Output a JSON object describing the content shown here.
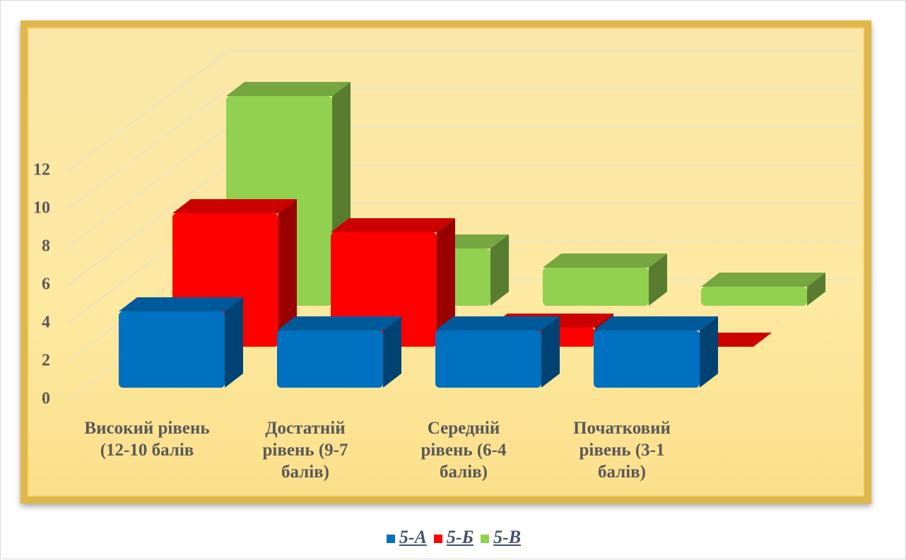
{
  "chart_data": {
    "type": "bar3d",
    "categories": [
      "Високий рівень (12-10 балів",
      "Достатній рівень (9-7 балів)",
      "Середній рівень (6-4 балів)",
      "Початковий рівень (3-1 балів)"
    ],
    "series": [
      {
        "name": "5-А",
        "color": "#0070c0",
        "values": [
          4,
          3,
          3,
          3
        ]
      },
      {
        "name": "5-Б",
        "color": "#ff0000",
        "values": [
          7,
          6,
          1,
          0
        ]
      },
      {
        "name": "5-В",
        "color": "#92d050",
        "values": [
          11,
          3,
          2,
          1
        ]
      }
    ],
    "ylim": [
      0,
      12
    ],
    "yticks": [
      0,
      2,
      4,
      6,
      8,
      10,
      12
    ],
    "grid": true,
    "legend": "bottom"
  }
}
